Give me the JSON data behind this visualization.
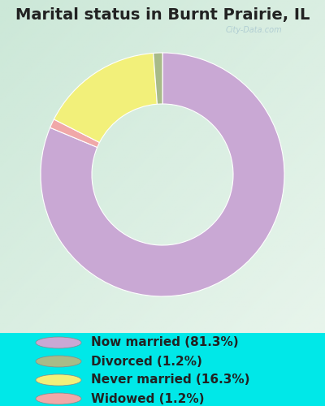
{
  "title": "Marital status in Burnt Prairie, IL",
  "slices": [
    81.3,
    1.2,
    16.3,
    1.2
  ],
  "slice_order": [
    "Now married",
    "Widowed",
    "Never married",
    "Divorced"
  ],
  "labels": [
    "Now married (81.3%)",
    "Divorced (1.2%)",
    "Never married (16.3%)",
    "Widowed (1.2%)"
  ],
  "colors_ordered": [
    "#c9a8d4",
    "#f0a8a8",
    "#f2f07a",
    "#a8bb88"
  ],
  "legend_colors": [
    "#c9a8d4",
    "#a8bb88",
    "#f2f07a",
    "#f0a8a8"
  ],
  "bg_cyan": "#00e8e8",
  "chart_bg_tl": "#d8ede0",
  "chart_bg_br": "#e8f5e0",
  "title_fontsize": 14,
  "legend_fontsize": 11,
  "watermark": "City-Data.com",
  "start_angle": 90,
  "donut_outer": 1.0,
  "donut_inner": 0.58
}
